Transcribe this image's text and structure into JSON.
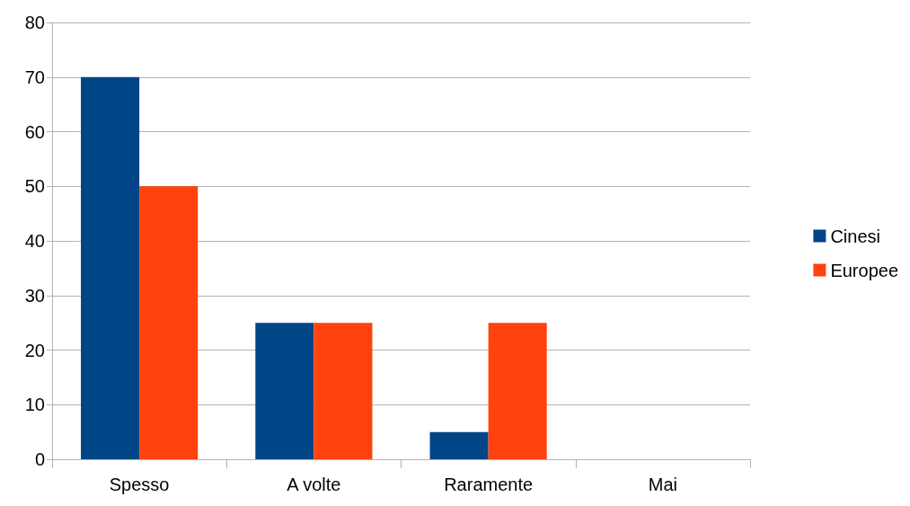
{
  "chart_data": {
    "type": "bar",
    "categories": [
      "Spesso",
      "A volte",
      "Raramente",
      "Mai"
    ],
    "series": [
      {
        "name": "Cinesi",
        "color": "#004586",
        "values": [
          70,
          25,
          5,
          0
        ]
      },
      {
        "name": "Europee",
        "color": "#ff420e",
        "values": [
          50,
          25,
          25,
          0
        ]
      }
    ],
    "ylim": [
      0,
      80
    ],
    "yticks": [
      0,
      10,
      20,
      30,
      40,
      50,
      60,
      70,
      80
    ],
    "grid": "y",
    "legend": "right"
  }
}
